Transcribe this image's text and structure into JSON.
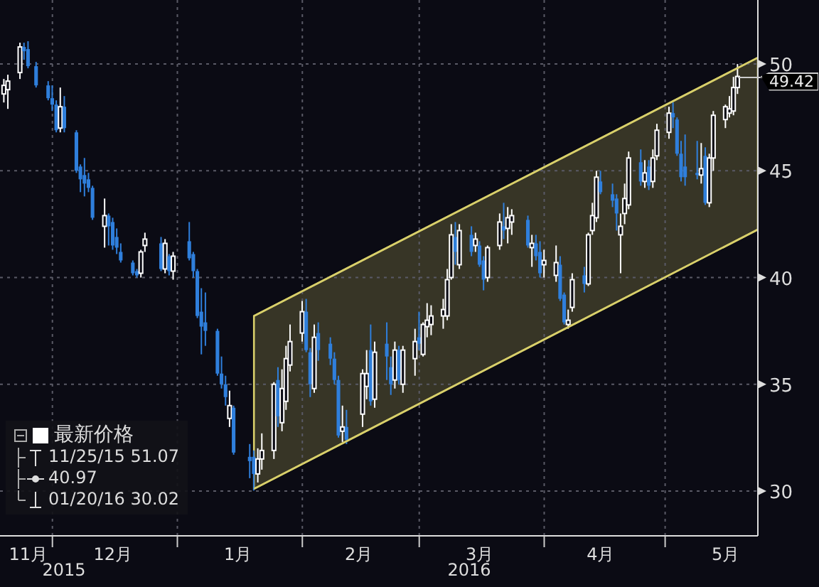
{
  "chart_data": {
    "type": "candlestick",
    "xlim": [
      "2015-11-18",
      "2016-05-24"
    ],
    "xticks": [
      {
        "value": "2015-11-25",
        "label": "11月"
      },
      {
        "value": "2015-12-01",
        "label": null
      },
      {
        "value": "2015-12-16",
        "label": "12月"
      },
      {
        "value": "2016-01-01",
        "label": null
      },
      {
        "value": "2016-01-16",
        "label": "1月"
      },
      {
        "value": "2016-02-01",
        "label": null
      },
      {
        "value": "2016-02-15",
        "label": "2月"
      },
      {
        "value": "2016-03-01",
        "label": null
      },
      {
        "value": "2016-03-16",
        "label": "3月"
      },
      {
        "value": "2016-04-01",
        "label": null
      },
      {
        "value": "2016-04-15",
        "label": "4月"
      },
      {
        "value": "2016-05-01",
        "label": null
      },
      {
        "value": "2016-05-16",
        "label": "5月"
      }
    ],
    "ylim": [
      27.9,
      53.0
    ],
    "yticks": [
      30,
      35,
      40,
      45,
      50
    ],
    "grid": true,
    "legend": "bottom left",
    "annotations": [
      "11/25/15 51.07",
      "40.97",
      "01/20/16 30.02",
      {
        "text": "49.42",
        "x": "2016-05-19",
        "y": 49.42
      },
      "2015",
      "2016"
    ],
    "series": [
      {
        "name": "最新价格",
        "color": "#ffffff",
        "x": [
          "2015-11-19",
          "2015-11-20",
          "2015-11-23",
          "2015-11-24",
          "2015-11-25",
          "2015-11-27",
          "2015-11-30",
          "2015-12-01",
          "2015-12-02",
          "2015-12-03",
          "2015-12-04",
          "2015-12-07",
          "2015-12-08",
          "2015-12-09",
          "2015-12-10",
          "2015-12-11",
          "2015-12-14",
          "2015-12-15",
          "2015-12-16",
          "2015-12-17",
          "2015-12-18",
          "2015-12-21",
          "2015-12-22",
          "2015-12-23",
          "2015-12-24",
          "2015-12-28",
          "2015-12-29",
          "2015-12-30",
          "2015-12-31",
          "2016-01-04",
          "2016-01-05",
          "2016-01-06",
          "2016-01-07",
          "2016-01-08",
          "2016-01-11",
          "2016-01-12",
          "2016-01-13",
          "2016-01-14",
          "2016-01-15",
          "2016-01-19",
          "2016-01-20",
          "2016-01-21",
          "2016-01-22",
          "2016-01-25",
          "2016-01-26",
          "2016-01-27",
          "2016-01-28",
          "2016-01-29",
          "2016-02-01",
          "2016-02-02",
          "2016-02-03",
          "2016-02-04",
          "2016-02-05",
          "2016-02-08",
          "2016-02-09",
          "2016-02-10",
          "2016-02-11",
          "2016-02-12",
          "2016-02-16",
          "2016-02-17",
          "2016-02-18",
          "2016-02-19",
          "2016-02-22",
          "2016-02-23",
          "2016-02-24",
          "2016-02-25",
          "2016-02-26",
          "2016-02-29",
          "2016-03-01",
          "2016-03-02",
          "2016-03-03",
          "2016-03-04",
          "2016-03-07",
          "2016-03-08",
          "2016-03-09",
          "2016-03-10",
          "2016-03-11",
          "2016-03-14",
          "2016-03-15",
          "2016-03-16",
          "2016-03-17",
          "2016-03-18",
          "2016-03-21",
          "2016-03-22",
          "2016-03-23",
          "2016-03-24",
          "2016-03-28",
          "2016-03-29",
          "2016-03-30",
          "2016-03-31",
          "2016-04-01",
          "2016-04-04",
          "2016-04-05",
          "2016-04-06",
          "2016-04-07",
          "2016-04-08",
          "2016-04-11",
          "2016-04-12",
          "2016-04-13",
          "2016-04-14",
          "2016-04-15",
          "2016-04-18",
          "2016-04-19",
          "2016-04-20",
          "2016-04-21",
          "2016-04-22",
          "2016-04-25",
          "2016-04-26",
          "2016-04-27",
          "2016-04-28",
          "2016-04-29",
          "2016-05-02",
          "2016-05-03",
          "2016-05-04",
          "2016-05-05",
          "2016-05-06",
          "2016-05-09",
          "2016-05-10",
          "2016-05-11",
          "2016-05-12",
          "2016-05-13",
          "2016-05-16",
          "2016-05-17",
          "2016-05-18",
          "2016-05-19"
        ],
        "ohlc": [
          [
            48.6,
            49.3,
            48.2,
            49.0
          ],
          [
            48.8,
            49.5,
            47.9,
            49.2
          ],
          [
            49.6,
            51.0,
            49.3,
            50.8
          ],
          [
            50.8,
            51.0,
            50.2,
            50.6
          ],
          [
            50.7,
            51.07,
            49.8,
            49.9
          ],
          [
            49.9,
            50.1,
            48.9,
            49.0
          ],
          [
            49.0,
            49.2,
            48.3,
            48.4
          ],
          [
            48.4,
            49.0,
            47.8,
            48.1
          ],
          [
            48.1,
            48.3,
            46.8,
            46.9
          ],
          [
            47.0,
            48.9,
            46.8,
            48.0
          ],
          [
            48.0,
            48.5,
            46.8,
            47.0
          ],
          [
            46.8,
            46.9,
            44.9,
            45.0
          ],
          [
            45.2,
            45.3,
            44.0,
            44.6
          ],
          [
            44.8,
            45.6,
            43.8,
            44.4
          ],
          [
            44.6,
            44.9,
            44.0,
            44.2
          ],
          [
            44.2,
            44.3,
            42.7,
            42.8
          ],
          [
            42.4,
            43.7,
            41.4,
            42.9
          ],
          [
            42.9,
            43.0,
            41.5,
            42.4
          ],
          [
            42.6,
            42.8,
            41.3,
            41.5
          ],
          [
            41.9,
            42.3,
            41.1,
            41.4
          ],
          [
            41.2,
            41.6,
            40.7,
            40.8
          ],
          [
            40.7,
            40.8,
            40.1,
            40.2
          ],
          [
            40.3,
            40.4,
            40.0,
            40.1
          ],
          [
            40.2,
            41.3,
            40.0,
            41.2
          ],
          [
            41.5,
            42.1,
            41.2,
            41.8
          ],
          [
            41.6,
            41.9,
            40.3,
            40.4
          ],
          [
            40.4,
            41.8,
            40.2,
            41.6
          ],
          [
            41.0,
            41.1,
            40.1,
            40.3
          ],
          [
            40.3,
            41.2,
            39.9,
            41.0
          ],
          [
            41.7,
            42.6,
            40.8,
            40.9
          ],
          [
            41.1,
            41.2,
            40.0,
            40.3
          ],
          [
            40.3,
            40.4,
            38.1,
            38.2
          ],
          [
            38.4,
            39.5,
            36.4,
            37.7
          ],
          [
            37.9,
            39.3,
            36.8,
            37.5
          ],
          [
            37.5,
            37.6,
            35.4,
            35.5
          ],
          [
            35.5,
            36.3,
            34.8,
            35.0
          ],
          [
            35.0,
            35.4,
            34.0,
            34.4
          ],
          [
            33.4,
            34.7,
            33.0,
            34.0
          ],
          [
            33.9,
            34.0,
            31.7,
            31.8
          ],
          [
            31.6,
            32.2,
            30.6,
            31.4
          ],
          [
            31.6,
            31.9,
            30.02,
            30.8
          ],
          [
            30.8,
            32.0,
            30.4,
            31.5
          ],
          [
            31.5,
            32.7,
            31.0,
            31.9
          ],
          [
            31.9,
            35.1,
            31.5,
            35.0
          ],
          [
            35.2,
            35.8,
            33.0,
            33.5
          ],
          [
            33.2,
            35.7,
            32.8,
            34.8
          ],
          [
            34.2,
            36.8,
            33.8,
            36.2
          ],
          [
            35.9,
            37.8,
            35.6,
            37.0
          ],
          [
            37.4,
            38.9,
            37.0,
            38.4
          ],
          [
            38.4,
            39.0,
            36.5,
            36.6
          ],
          [
            36.5,
            36.7,
            34.4,
            35.0
          ],
          [
            34.8,
            37.8,
            34.6,
            37.2
          ],
          [
            37.4,
            37.9,
            36.1,
            36.6
          ],
          [
            36.9,
            37.2,
            35.9,
            36.2
          ],
          [
            36.2,
            36.5,
            35.0,
            35.2
          ],
          [
            35.2,
            35.4,
            32.5,
            32.6
          ],
          [
            32.8,
            34.0,
            32.3,
            33.0
          ],
          [
            33.0,
            33.8,
            32.2,
            32.4
          ],
          [
            33.6,
            35.7,
            33.0,
            35.5
          ],
          [
            34.9,
            36.6,
            34.3,
            35.5
          ],
          [
            36.6,
            37.8,
            34.0,
            34.2
          ],
          [
            34.3,
            37.0,
            33.9,
            36.5
          ],
          [
            36.9,
            37.9,
            35.2,
            36.3
          ],
          [
            35.8,
            36.3,
            34.5,
            35.0
          ],
          [
            35.2,
            37.0,
            34.8,
            36.6
          ],
          [
            36.6,
            36.8,
            35.0,
            35.2
          ],
          [
            35.0,
            36.8,
            34.6,
            36.6
          ],
          [
            36.2,
            37.6,
            35.4,
            37.0
          ],
          [
            37.2,
            38.4,
            36.6,
            36.9
          ],
          [
            36.4,
            37.9,
            36.3,
            37.8
          ],
          [
            37.7,
            38.8,
            37.2,
            38.0
          ],
          [
            37.8,
            38.7,
            37.3,
            38.2
          ],
          [
            38.2,
            39.0,
            37.6,
            38.5
          ],
          [
            38.2,
            40.4,
            38.0,
            39.9
          ],
          [
            40.0,
            42.5,
            39.9,
            42.0
          ],
          [
            41.9,
            42.6,
            40.6,
            41.2
          ],
          [
            40.6,
            42.5,
            40.4,
            42.2
          ],
          [
            42.0,
            42.4,
            41.0,
            41.2
          ],
          [
            41.5,
            42.1,
            41.2,
            41.8
          ],
          [
            41.5,
            41.7,
            40.5,
            40.6
          ],
          [
            40.8,
            41.0,
            39.4,
            39.9
          ],
          [
            40.0,
            41.5,
            39.8,
            41.4
          ],
          [
            41.5,
            43.0,
            41.3,
            42.6
          ],
          [
            42.4,
            43.5,
            41.8,
            42.2
          ],
          [
            42.3,
            43.3,
            41.6,
            42.8
          ],
          [
            42.6,
            43.2,
            42.0,
            42.9
          ],
          [
            42.7,
            42.9,
            41.4,
            41.5
          ],
          [
            41.4,
            42.0,
            40.5,
            41.6
          ],
          [
            41.6,
            42.0,
            40.8,
            41.0
          ],
          [
            41.2,
            41.7,
            40.0,
            40.2
          ],
          [
            40.6,
            41.3,
            40.0,
            40.8
          ],
          [
            40.1,
            41.5,
            39.8,
            40.7
          ],
          [
            40.6,
            41.0,
            38.9,
            39.0
          ],
          [
            39.2,
            39.3,
            37.8,
            37.9
          ],
          [
            37.8,
            38.5,
            37.6,
            38.0
          ],
          [
            38.6,
            40.2,
            38.4,
            39.9
          ],
          [
            40.1,
            40.5,
            39.3,
            39.7
          ],
          [
            39.7,
            42.1,
            39.6,
            42.0
          ],
          [
            42.2,
            43.5,
            42.0,
            42.9
          ],
          [
            42.8,
            45.0,
            42.6,
            44.7
          ],
          [
            44.5,
            45.0,
            43.9,
            44.0
          ],
          [
            43.9,
            44.4,
            43.3,
            43.6
          ],
          [
            43.7,
            43.9,
            42.2,
            43.0
          ],
          [
            42.0,
            43.0,
            40.2,
            42.4
          ],
          [
            43.0,
            44.4,
            42.5,
            43.7
          ],
          [
            43.4,
            45.9,
            43.2,
            45.6
          ],
          [
            45.4,
            46.0,
            44.3,
            44.5
          ],
          [
            44.5,
            45.5,
            44.2,
            44.9
          ],
          [
            45.2,
            45.5,
            44.1,
            44.3
          ],
          [
            44.5,
            46.0,
            44.2,
            45.6
          ],
          [
            45.7,
            47.2,
            45.5,
            46.9
          ],
          [
            46.8,
            48.0,
            46.5,
            47.7
          ],
          [
            47.7,
            48.2,
            47.0,
            47.5
          ],
          [
            47.4,
            47.5,
            45.7,
            45.8
          ],
          [
            45.8,
            46.4,
            44.5,
            44.7
          ],
          [
            45.2,
            46.7,
            44.3,
            44.7
          ],
          [
            44.9,
            46.4,
            44.6,
            44.8
          ],
          [
            44.8,
            46.3,
            44.4,
            45.1
          ],
          [
            45.7,
            46.1,
            43.4,
            43.5
          ],
          [
            43.5,
            45.8,
            43.3,
            45.6
          ],
          [
            45.6,
            47.8,
            45.0,
            47.6
          ],
          [
            47.4,
            48.1,
            47.0,
            48.0
          ],
          [
            47.7,
            48.5,
            47.5,
            47.9
          ],
          [
            47.8,
            49.4,
            47.6,
            48.9
          ],
          [
            48.9,
            50.0,
            48.6,
            49.42
          ]
        ],
        "colors": [
          "#ffffff",
          "#ffffff",
          "#ffffff",
          "#2f7fdc",
          "#2f7fdc",
          "#2f7fdc",
          "#2f7fdc",
          "#2f7fdc",
          "#2f7fdc",
          "#ffffff",
          "#2f7fdc",
          "#2f7fdc",
          "#2f7fdc",
          "#2f7fdc",
          "#2f7fdc",
          "#2f7fdc",
          "#ffffff",
          "#2f7fdc",
          "#2f7fdc",
          "#2f7fdc",
          "#2f7fdc",
          "#2f7fdc",
          "#2f7fdc",
          "#ffffff",
          "#ffffff",
          "#2f7fdc",
          "#ffffff",
          "#2f7fdc",
          "#ffffff",
          "#2f7fdc",
          "#2f7fdc",
          "#2f7fdc",
          "#2f7fdc",
          "#2f7fdc",
          "#2f7fdc",
          "#2f7fdc",
          "#2f7fdc",
          "#ffffff",
          "#2f7fdc",
          "#2f7fdc",
          "#2f7fdc",
          "#ffffff",
          "#ffffff",
          "#ffffff",
          "#2f7fdc",
          "#ffffff",
          "#ffffff",
          "#ffffff",
          "#ffffff",
          "#2f7fdc",
          "#2f7fdc",
          "#ffffff",
          "#2f7fdc",
          "#2f7fdc",
          "#2f7fdc",
          "#2f7fdc",
          "#ffffff",
          "#2f7fdc",
          "#ffffff",
          "#ffffff",
          "#2f7fdc",
          "#ffffff",
          "#2f7fdc",
          "#2f7fdc",
          "#ffffff",
          "#2f7fdc",
          "#ffffff",
          "#ffffff",
          "#2f7fdc",
          "#ffffff",
          "#ffffff",
          "#ffffff",
          "#ffffff",
          "#ffffff",
          "#ffffff",
          "#2f7fdc",
          "#ffffff",
          "#2f7fdc",
          "#ffffff",
          "#2f7fdc",
          "#2f7fdc",
          "#ffffff",
          "#ffffff",
          "#2f7fdc",
          "#ffffff",
          "#ffffff",
          "#2f7fdc",
          "#ffffff",
          "#2f7fdc",
          "#2f7fdc",
          "#ffffff",
          "#ffffff",
          "#2f7fdc",
          "#2f7fdc",
          "#ffffff",
          "#ffffff",
          "#2f7fdc",
          "#ffffff",
          "#ffffff",
          "#ffffff",
          "#2f7fdc",
          "#2f7fdc",
          "#2f7fdc",
          "#ffffff",
          "#ffffff",
          "#ffffff",
          "#2f7fdc",
          "#ffffff",
          "#2f7fdc",
          "#ffffff",
          "#ffffff",
          "#ffffff",
          "#2f7fdc",
          "#2f7fdc",
          "#2f7fdc",
          "#2f7fdc",
          "#2f7fdc",
          "#ffffff",
          "#2f7fdc",
          "#ffffff",
          "#ffffff",
          "#ffffff",
          "#ffffff",
          "#ffffff",
          "#ffffff"
        ]
      },
      {
        "type": "line",
        "color": "#d8cf6a",
        "x": [
          "2016-01-20",
          "2016-05-24"
        ],
        "values": [
          30.1,
          42.25
        ]
      },
      {
        "type": "line",
        "color": "#d8cf6a",
        "x": [
          "2016-01-20",
          "2016-05-24"
        ],
        "values": [
          38.2,
          50.3
        ]
      }
    ]
  }
}
